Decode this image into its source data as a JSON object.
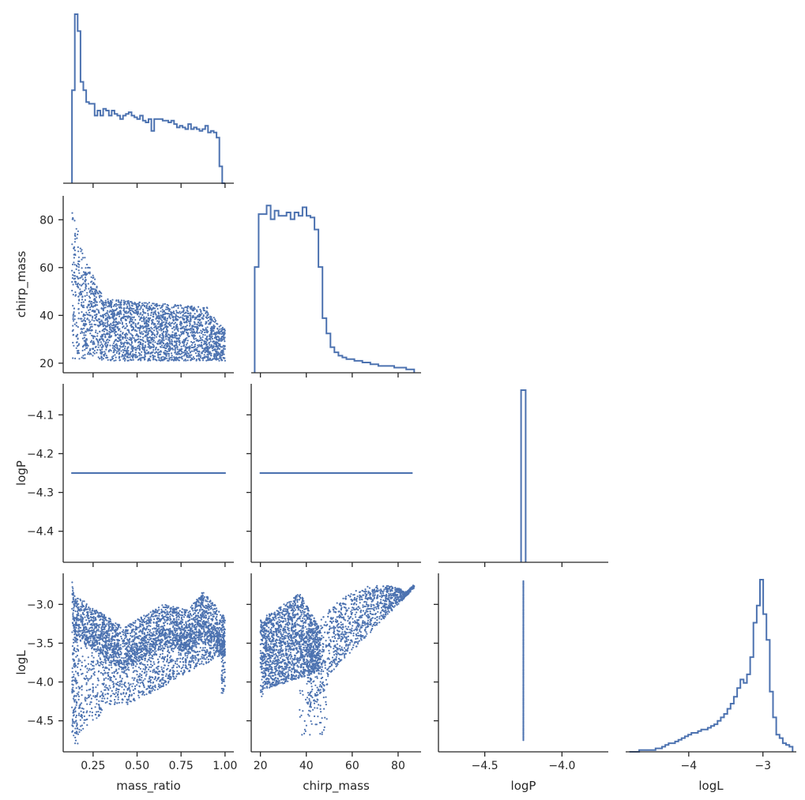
{
  "chart_data": {
    "type": "pairplot",
    "variables": [
      "mass_ratio",
      "chirp_mass",
      "logP",
      "logL"
    ],
    "color": "#4c72b0",
    "axis_color": "#262626",
    "corner": true,
    "grid": false,
    "axes": {
      "mass_ratio": {
        "label": "mass_ratio",
        "lim": [
          0.08,
          1.05
        ],
        "ticks": [
          0.25,
          0.5,
          0.75,
          1.0
        ],
        "tick_labels": [
          "0.25",
          "0.50",
          "0.75",
          "1.00"
        ]
      },
      "chirp_mass": {
        "label": "chirp_mass",
        "lim": [
          16,
          90
        ],
        "ticks": [
          20,
          40,
          60,
          80
        ],
        "tick_labels": [
          "20",
          "40",
          "60",
          "80"
        ]
      },
      "logP": {
        "label": "logP",
        "lim": [
          -4.48,
          -4.02
        ],
        "ticks": [
          -4.4,
          -4.3,
          -4.2,
          -4.1
        ],
        "tick_labels": [
          "−4.4",
          "−4.3",
          "−4.2",
          "−4.1"
        ]
      },
      "logP_x": {
        "label": "logP",
        "lim": [
          -4.8,
          -3.7
        ],
        "ticks": [
          -4.5,
          -4.0
        ],
        "tick_labels": [
          "−4.5",
          "−4.0"
        ]
      },
      "logL": {
        "label": "logL",
        "lim": [
          -4.9,
          -2.6
        ],
        "ticks": [
          -4.5,
          -4.0,
          -3.5,
          -3.0
        ],
        "tick_labels": [
          "−4.5",
          "−4.0",
          "−3.5",
          "−3.0"
        ]
      },
      "logL_x": {
        "label": "logL",
        "lim": [
          -4.85,
          -2.55
        ],
        "ticks": [
          -4,
          -3
        ],
        "tick_labels": [
          "−4",
          "−3"
        ]
      }
    },
    "histograms": {
      "mass_ratio": {
        "x0": 0.13,
        "x1": 1.0,
        "values": [
          0.55,
          1.0,
          0.9,
          0.6,
          0.55,
          0.48,
          0.47,
          0.47,
          0.4,
          0.43,
          0.4,
          0.44,
          0.43,
          0.4,
          0.43,
          0.41,
          0.4,
          0.38,
          0.4,
          0.41,
          0.42,
          0.4,
          0.39,
          0.38,
          0.4,
          0.37,
          0.36,
          0.38,
          0.31,
          0.38,
          0.38,
          0.38,
          0.37,
          0.37,
          0.36,
          0.37,
          0.35,
          0.33,
          0.34,
          0.33,
          0.32,
          0.35,
          0.32,
          0.33,
          0.32,
          0.31,
          0.32,
          0.34,
          0.3,
          0.31,
          0.3,
          0.27,
          0.1,
          0.0
        ]
      },
      "chirp_mass": {
        "x0": 17.5,
        "x1": 87,
        "values": [
          0.62,
          0.93,
          0.93,
          0.98,
          0.9,
          0.95,
          0.92,
          0.92,
          0.94,
          0.9,
          0.94,
          0.92,
          0.97,
          0.92,
          0.91,
          0.84,
          0.62,
          0.32,
          0.23,
          0.15,
          0.12,
          0.1,
          0.09,
          0.08,
          0.08,
          0.07,
          0.07,
          0.06,
          0.06,
          0.05,
          0.05,
          0.04,
          0.04,
          0.04,
          0.04,
          0.03,
          0.03,
          0.03,
          0.02,
          0.02
        ]
      },
      "logP": {
        "x0": -4.265,
        "x1": -4.235,
        "values": [
          1.0
        ]
      },
      "logL": {
        "x0": -4.8,
        "x1": -2.6,
        "values": [
          0.0,
          0.0,
          0.0,
          0.01,
          0.01,
          0.01,
          0.01,
          0.01,
          0.02,
          0.02,
          0.03,
          0.04,
          0.05,
          0.05,
          0.06,
          0.07,
          0.08,
          0.09,
          0.1,
          0.11,
          0.11,
          0.12,
          0.13,
          0.13,
          0.14,
          0.15,
          0.16,
          0.18,
          0.2,
          0.22,
          0.25,
          0.28,
          0.32,
          0.37,
          0.42,
          0.4,
          0.45,
          0.55,
          0.75,
          0.85,
          1.0,
          0.8,
          0.65,
          0.35,
          0.2,
          0.1,
          0.08,
          0.05,
          0.04,
          0.03
        ]
      }
    }
  }
}
